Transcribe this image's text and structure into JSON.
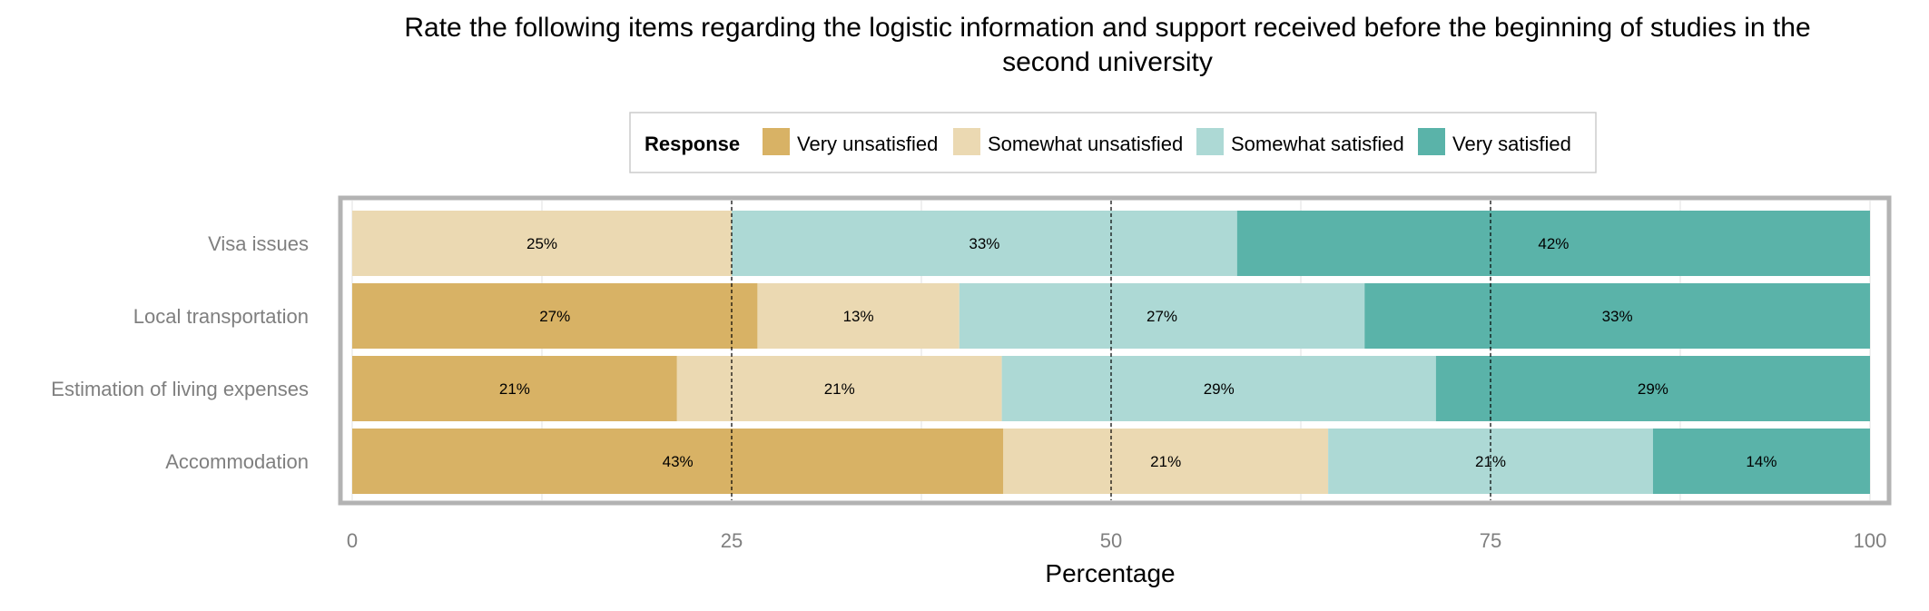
{
  "chart_data": {
    "type": "bar",
    "orientation": "horizontal",
    "stacked": true,
    "title": "Rate the following items regarding the logistic information and support received before the beginning of studies in the second university",
    "title_lines": [
      "Rate the following items regarding the logistic information and support received before the beginning of studies in the",
      "second university"
    ],
    "xlabel": "Percentage",
    "ylabel": "",
    "xlim": [
      0,
      100
    ],
    "x_ticks": [
      0,
      25,
      50,
      75,
      100
    ],
    "grid": true,
    "reference_lines": [
      25,
      50,
      75
    ],
    "legend": {
      "title": "Response",
      "position": "top"
    },
    "categories": [
      "Visa issues",
      "Local transportation",
      "Estimation of living expenses",
      "Accommodation"
    ],
    "series": [
      {
        "name": "Very unsatisfied",
        "color": "#D8B265",
        "values": [
          0,
          26.7,
          21.4,
          42.9
        ],
        "labels": [
          "",
          "27%",
          "21%",
          "43%"
        ]
      },
      {
        "name": "Somewhat unsatisfied",
        "color": "#EBD9B2",
        "values": [
          25,
          13.3,
          21.4,
          21.4
        ],
        "labels": [
          "25%",
          "13%",
          "21%",
          "21%"
        ]
      },
      {
        "name": "Somewhat satisfied",
        "color": "#ADD9D5",
        "values": [
          33.3,
          26.7,
          28.6,
          21.4
        ],
        "labels": [
          "33%",
          "27%",
          "29%",
          "21%"
        ]
      },
      {
        "name": "Very satisfied",
        "color": "#5AB3A9",
        "values": [
          41.7,
          33.3,
          28.6,
          14.3
        ],
        "labels": [
          "42%",
          "33%",
          "29%",
          "14%"
        ]
      }
    ]
  }
}
